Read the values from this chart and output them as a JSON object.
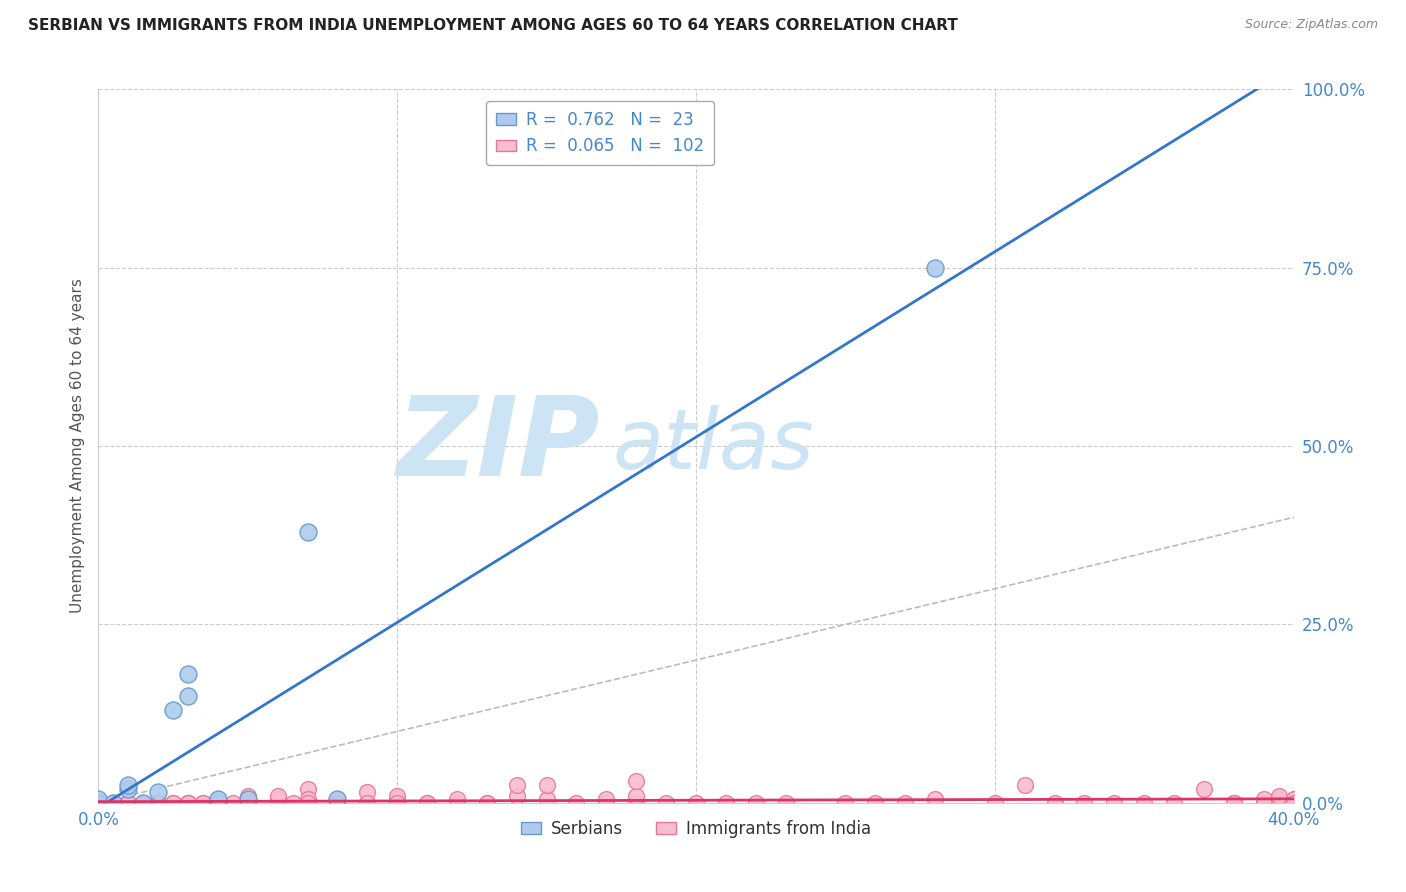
{
  "title": "SERBIAN VS IMMIGRANTS FROM INDIA UNEMPLOYMENT AMONG AGES 60 TO 64 YEARS CORRELATION CHART",
  "source": "Source: ZipAtlas.com",
  "ylabel": "Unemployment Among Ages 60 to 64 years",
  "xlim": [
    0.0,
    0.4
  ],
  "ylim": [
    0.0,
    1.0
  ],
  "xtick_positions": [
    0.0,
    0.4
  ],
  "xtick_labels": [
    "0.0%",
    "40.0%"
  ],
  "ytick_positions": [
    0.0,
    0.25,
    0.5,
    0.75,
    1.0
  ],
  "ytick_labels": [
    "0.0%",
    "25.0%",
    "50.0%",
    "75.0%",
    "100.0%"
  ],
  "grid_yticks": [
    0.0,
    0.25,
    0.5,
    0.75,
    1.0
  ],
  "grid_xticks": [
    0.0,
    0.1,
    0.2,
    0.3,
    0.4
  ],
  "series1_name": "Serbians",
  "series1_R": 0.762,
  "series1_N": 23,
  "series1_color": "#aecbee",
  "series1_edge_color": "#6699cc",
  "series2_name": "Immigrants from India",
  "series2_R": 0.065,
  "series2_N": 102,
  "series2_color": "#f9bdd0",
  "series2_edge_color": "#e87898",
  "line1_color": "#3377cc",
  "line2_color": "#dd3366",
  "ref_line_color": "#bbbbbb",
  "watermark_zip": "ZIP",
  "watermark_atlas": "atlas",
  "watermark_color": "#cde4f5",
  "bg_color": "#ffffff",
  "grid_color": "#cccccc",
  "title_color": "#222222",
  "axis_label_color": "#4488cc",
  "legend_text_color": "#4488cc",
  "series1_x": [
    0.0,
    0.0,
    0.0,
    0.0,
    0.0,
    0.0,
    0.0,
    0.0,
    0.0,
    0.005,
    0.01,
    0.01,
    0.015,
    0.02,
    0.025,
    0.03,
    0.03,
    0.04,
    0.04,
    0.05,
    0.07,
    0.08,
    0.28
  ],
  "series1_y": [
    0.0,
    0.0,
    0.0,
    0.0,
    0.0,
    0.0,
    0.0,
    0.0,
    0.005,
    0.0,
    0.02,
    0.025,
    0.0,
    0.015,
    0.13,
    0.15,
    0.18,
    0.0,
    0.005,
    0.005,
    0.38,
    0.005,
    0.75
  ],
  "series2_x": [
    0.0,
    0.0,
    0.0,
    0.0,
    0.0,
    0.0,
    0.0,
    0.0,
    0.0,
    0.0,
    0.0,
    0.005,
    0.005,
    0.005,
    0.01,
    0.01,
    0.01,
    0.01,
    0.015,
    0.015,
    0.02,
    0.02,
    0.02,
    0.02,
    0.025,
    0.025,
    0.03,
    0.03,
    0.03,
    0.03,
    0.035,
    0.035,
    0.04,
    0.04,
    0.04,
    0.045,
    0.05,
    0.05,
    0.05,
    0.05,
    0.05,
    0.06,
    0.06,
    0.06,
    0.06,
    0.065,
    0.07,
    0.07,
    0.07,
    0.08,
    0.08,
    0.08,
    0.09,
    0.09,
    0.09,
    0.1,
    0.1,
    0.1,
    0.1,
    0.1,
    0.11,
    0.11,
    0.12,
    0.12,
    0.13,
    0.13,
    0.14,
    0.14,
    0.15,
    0.15,
    0.16,
    0.17,
    0.17,
    0.18,
    0.18,
    0.18,
    0.19,
    0.2,
    0.21,
    0.22,
    0.23,
    0.25,
    0.26,
    0.27,
    0.28,
    0.3,
    0.31,
    0.32,
    0.33,
    0.34,
    0.35,
    0.36,
    0.37,
    0.38,
    0.38,
    0.39,
    0.39,
    0.395,
    0.395,
    0.4,
    0.4,
    0.4
  ],
  "series2_y": [
    0.0,
    0.0,
    0.0,
    0.0,
    0.0,
    0.0,
    0.0,
    0.0,
    0.0,
    0.0,
    0.0,
    0.0,
    0.0,
    0.0,
    0.0,
    0.0,
    0.0,
    0.0,
    0.0,
    0.0,
    0.0,
    0.0,
    0.0,
    0.0,
    0.0,
    0.0,
    0.0,
    0.0,
    0.0,
    0.0,
    0.0,
    0.0,
    0.0,
    0.0,
    0.005,
    0.0,
    0.0,
    0.0,
    0.01,
    0.005,
    0.0,
    0.0,
    0.0,
    0.005,
    0.01,
    0.0,
    0.02,
    0.005,
    0.0,
    0.0,
    0.005,
    0.0,
    0.0,
    0.015,
    0.0,
    0.0,
    0.005,
    0.0,
    0.01,
    0.0,
    0.0,
    0.0,
    0.0,
    0.005,
    0.0,
    0.0,
    0.01,
    0.025,
    0.005,
    0.025,
    0.0,
    0.0,
    0.005,
    0.0,
    0.01,
    0.03,
    0.0,
    0.0,
    0.0,
    0.0,
    0.0,
    0.0,
    0.0,
    0.0,
    0.005,
    0.0,
    0.025,
    0.0,
    0.0,
    0.0,
    0.0,
    0.0,
    0.02,
    0.0,
    0.0,
    0.0,
    0.005,
    0.005,
    0.01,
    0.005,
    0.005,
    0.0
  ]
}
